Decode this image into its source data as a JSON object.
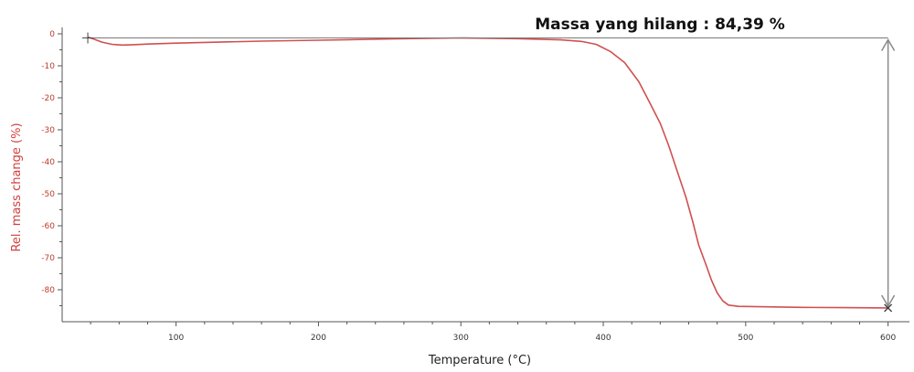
{
  "chart_data": {
    "type": "line",
    "xlabel": "Temperature (°C)",
    "ylabel": "Rel. mass change (%)",
    "xlim": [
      20,
      615
    ],
    "ylim": [
      -90,
      2
    ],
    "x_ticks": [
      100,
      200,
      300,
      400,
      500,
      600
    ],
    "y_ticks": [
      0,
      -10,
      -20,
      -30,
      -40,
      -50,
      -60,
      -70,
      -80
    ],
    "grid": false,
    "annotation": {
      "text": "Massa yang hilang : 84,39 %",
      "from_value": -1.3,
      "to_value": -85.7,
      "at_x": 600
    },
    "series": [
      {
        "color": "#d05050",
        "x": [
          38,
          42,
          48,
          55,
          62,
          70,
          80,
          100,
          130,
          160,
          200,
          250,
          300,
          340,
          370,
          385,
          395,
          405,
          415,
          425,
          432,
          440,
          446,
          452,
          458,
          463,
          467,
          472,
          476,
          480,
          484,
          488,
          495,
          510,
          540,
          570,
          600
        ],
        "y": [
          -1.0,
          -1.6,
          -2.6,
          -3.3,
          -3.5,
          -3.4,
          -3.2,
          -2.9,
          -2.6,
          -2.3,
          -2.0,
          -1.6,
          -1.3,
          -1.5,
          -1.9,
          -2.4,
          -3.3,
          -5.5,
          -9.0,
          -15.0,
          -21.0,
          -28.0,
          -35.0,
          -43.0,
          -51.0,
          -59.0,
          -66.0,
          -72.0,
          -77.0,
          -81.0,
          -83.5,
          -84.8,
          -85.2,
          -85.3,
          -85.5,
          -85.6,
          -85.7
        ]
      }
    ]
  }
}
